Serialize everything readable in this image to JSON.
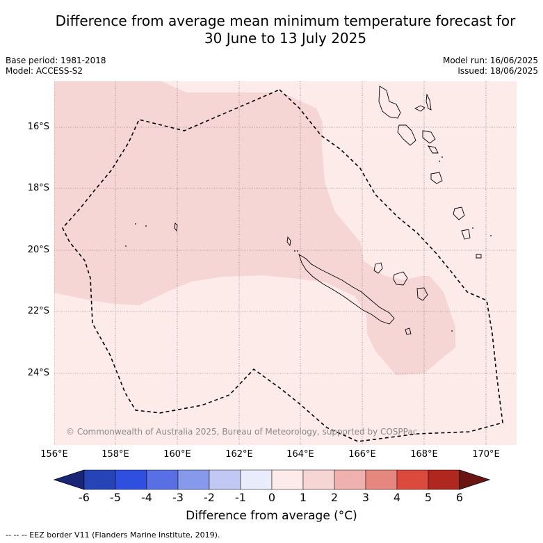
{
  "title": {
    "line1": "Difference from average mean minimum temperature forecast for",
    "line2": "30 June to 13 July 2025"
  },
  "meta_left": {
    "base_period": "Base period: 1981-2018",
    "model": "Model: ACCESS-S2"
  },
  "meta_right": {
    "model_run": "Model run: 16/06/2025",
    "issued": "Issued: 18/06/2025"
  },
  "map": {
    "lat_labels": [
      "16°S",
      "18°S",
      "20°S",
      "22°S",
      "24°S"
    ],
    "lon_labels": [
      "156°E",
      "158°E",
      "160°E",
      "162°E",
      "164°E",
      "166°E",
      "168°E",
      "170°E"
    ],
    "copyright": "© Commonwealth of Australia 2025, Bureau of Meteorology, supported by COSPPac",
    "colors": {
      "background_class_0_1": "#fcebe9",
      "class_1_2": "#f5d6d4",
      "eez_border": "#000000"
    }
  },
  "colorbar": {
    "ticks": [
      "-6",
      "-5",
      "-4",
      "-3",
      "-2",
      "-1",
      "0",
      "1",
      "2",
      "3",
      "4",
      "5",
      "6"
    ],
    "colors": [
      "#1a2575",
      "#2544b5",
      "#2f4fe0",
      "#5870e4",
      "#8799ea",
      "#c0c8f3",
      "#e9ecfb",
      "#fcebe9",
      "#f5d6d4",
      "#eeb1ad",
      "#e5877e",
      "#dc4a3e",
      "#b0271f",
      "#6b1512"
    ],
    "label": "Difference from average (°C)"
  },
  "footer": "--  --  -- EEZ border V11 (Flanders Marine Institute, 2019)."
}
